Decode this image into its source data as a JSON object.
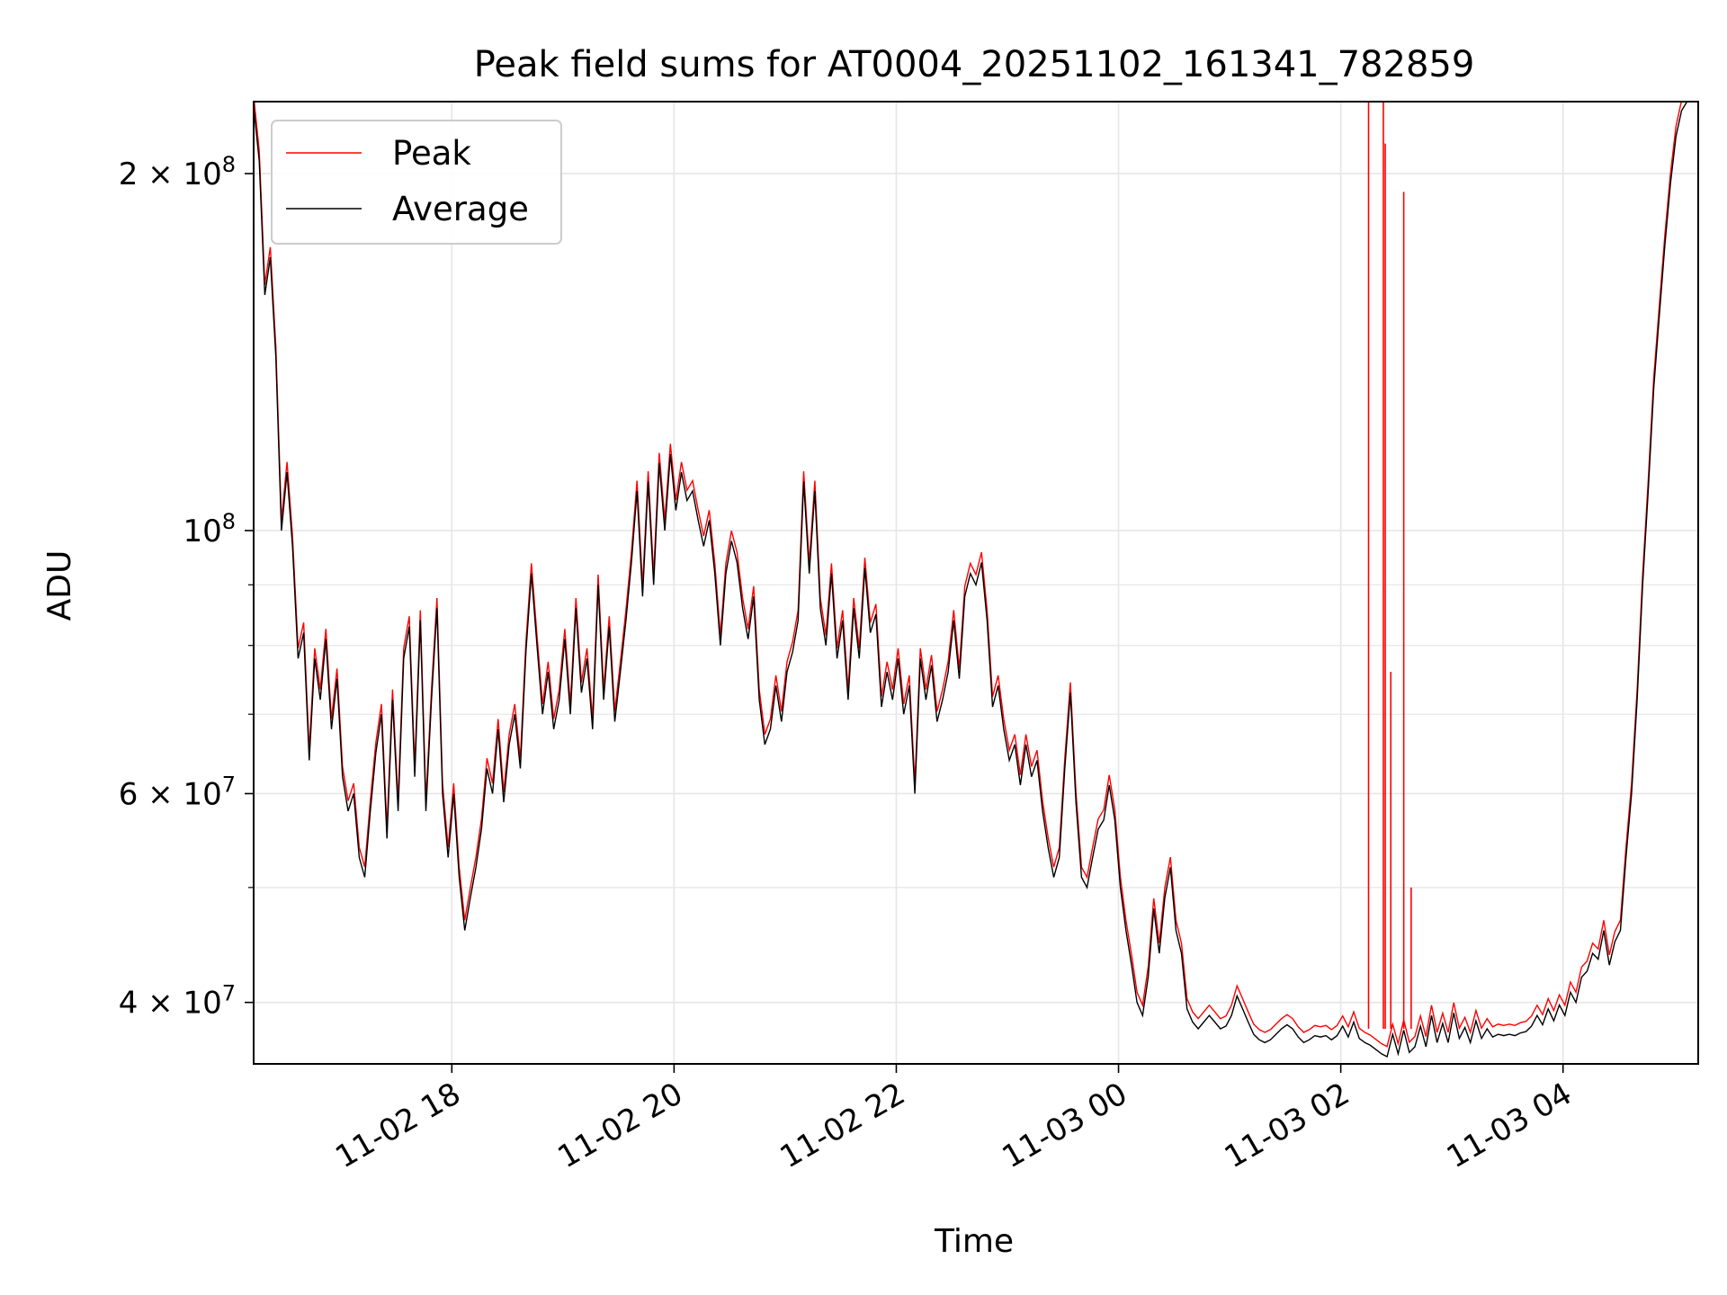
{
  "chart_data": {
    "type": "line",
    "title": "Peak field sums for AT0004_20251102_161341_782859",
    "xlabel": "Time",
    "ylabel": "ADU",
    "y_scale": "log",
    "ylim": [
      35500000,
      230000000
    ],
    "xlim": [
      "2025-11-02 16:13",
      "2025-11-03 05:13"
    ],
    "grid": true,
    "legend_position": "top-left",
    "x_tick_labels": [
      "11-02 18",
      "11-02 20",
      "11-02 22",
      "11-03 00",
      "11-03 02",
      "11-03 04"
    ],
    "x_ticks": [
      "2025-11-02 18:00",
      "2025-11-02 20:00",
      "2025-11-02 22:00",
      "2025-11-03 00:00",
      "2025-11-03 02:00",
      "2025-11-03 04:00"
    ],
    "y_tick_labels": [
      {
        "value": 40000000,
        "mantissa": "4",
        "exponent": "7"
      },
      {
        "value": 60000000,
        "mantissa": "6",
        "exponent": "7"
      },
      {
        "value": 100000000,
        "mantissa": "",
        "exponent": "8"
      },
      {
        "value": 200000000,
        "mantissa": "2",
        "exponent": "8"
      }
    ],
    "y_minor_ticks": [
      50000000,
      70000000,
      80000000,
      90000000
    ],
    "average_points": [
      [
        "2025-11-02 16:13",
        228000000
      ],
      [
        "2025-11-02 16:16",
        205000000
      ],
      [
        "2025-11-02 16:19",
        158000000
      ],
      [
        "2025-11-02 16:22",
        170000000
      ],
      [
        "2025-11-02 16:25",
        140000000
      ],
      [
        "2025-11-02 16:28",
        100000000
      ],
      [
        "2025-11-02 16:31",
        112000000
      ],
      [
        "2025-11-02 16:34",
        97000000
      ],
      [
        "2025-11-02 16:37",
        78000000
      ],
      [
        "2025-11-02 16:40",
        82000000
      ],
      [
        "2025-11-02 16:43",
        64000000
      ],
      [
        "2025-11-02 16:46",
        78000000
      ],
      [
        "2025-11-02 16:49",
        72000000
      ],
      [
        "2025-11-02 16:52",
        81000000
      ],
      [
        "2025-11-02 16:55",
        68000000
      ],
      [
        "2025-11-02 16:58",
        75000000
      ],
      [
        "2025-11-02 17:01",
        62000000
      ],
      [
        "2025-11-02 17:04",
        58000000
      ],
      [
        "2025-11-02 17:07",
        60000000
      ],
      [
        "2025-11-02 17:10",
        53000000
      ],
      [
        "2025-11-02 17:13",
        51000000
      ],
      [
        "2025-11-02 17:16",
        58000000
      ],
      [
        "2025-11-02 17:19",
        65000000
      ],
      [
        "2025-11-02 17:22",
        70000000
      ],
      [
        "2025-11-02 17:25",
        55000000
      ],
      [
        "2025-11-02 17:28",
        72000000
      ],
      [
        "2025-11-02 17:31",
        58000000
      ],
      [
        "2025-11-02 17:34",
        78000000
      ],
      [
        "2025-11-02 17:37",
        83000000
      ],
      [
        "2025-11-02 17:40",
        62000000
      ],
      [
        "2025-11-02 17:43",
        84000000
      ],
      [
        "2025-11-02 17:46",
        58000000
      ],
      [
        "2025-11-02 17:49",
        72000000
      ],
      [
        "2025-11-02 17:52",
        86000000
      ],
      [
        "2025-11-02 17:55",
        60000000
      ],
      [
        "2025-11-02 17:58",
        53000000
      ],
      [
        "2025-11-02 18:01",
        60000000
      ],
      [
        "2025-11-02 18:04",
        51000000
      ],
      [
        "2025-11-02 18:07",
        46000000
      ],
      [
        "2025-11-02 18:10",
        49000000
      ],
      [
        "2025-11-02 18:13",
        52000000
      ],
      [
        "2025-11-02 18:16",
        56000000
      ],
      [
        "2025-11-02 18:19",
        63000000
      ],
      [
        "2025-11-02 18:22",
        60000000
      ],
      [
        "2025-11-02 18:25",
        68000000
      ],
      [
        "2025-11-02 18:28",
        59000000
      ],
      [
        "2025-11-02 18:31",
        66000000
      ],
      [
        "2025-11-02 18:34",
        70000000
      ],
      [
        "2025-11-02 18:37",
        63000000
      ],
      [
        "2025-11-02 18:40",
        79000000
      ],
      [
        "2025-11-02 18:43",
        92000000
      ],
      [
        "2025-11-02 18:46",
        80000000
      ],
      [
        "2025-11-02 18:49",
        70000000
      ],
      [
        "2025-11-02 18:52",
        76000000
      ],
      [
        "2025-11-02 18:55",
        68000000
      ],
      [
        "2025-11-02 18:58",
        72000000
      ],
      [
        "2025-11-02 19:01",
        81000000
      ],
      [
        "2025-11-02 19:04",
        70000000
      ],
      [
        "2025-11-02 19:07",
        86000000
      ],
      [
        "2025-11-02 19:10",
        73000000
      ],
      [
        "2025-11-02 19:13",
        78000000
      ],
      [
        "2025-11-02 19:16",
        68000000
      ],
      [
        "2025-11-02 19:19",
        90000000
      ],
      [
        "2025-11-02 19:22",
        72000000
      ],
      [
        "2025-11-02 19:25",
        83000000
      ],
      [
        "2025-11-02 19:28",
        69000000
      ],
      [
        "2025-11-02 19:31",
        76000000
      ],
      [
        "2025-11-02 19:34",
        84000000
      ],
      [
        "2025-11-02 19:37",
        94000000
      ],
      [
        "2025-11-02 19:40",
        108000000
      ],
      [
        "2025-11-02 19:43",
        88000000
      ],
      [
        "2025-11-02 19:46",
        110000000
      ],
      [
        "2025-11-02 19:49",
        90000000
      ],
      [
        "2025-11-02 19:52",
        114000000
      ],
      [
        "2025-11-02 19:55",
        100000000
      ],
      [
        "2025-11-02 19:58",
        116000000
      ],
      [
        "2025-11-02 20:01",
        104000000
      ],
      [
        "2025-11-02 20:04",
        112000000
      ],
      [
        "2025-11-02 20:07",
        106000000
      ],
      [
        "2025-11-02 20:10",
        108000000
      ],
      [
        "2025-11-02 20:13",
        102000000
      ],
      [
        "2025-11-02 20:16",
        97000000
      ],
      [
        "2025-11-02 20:19",
        102000000
      ],
      [
        "2025-11-02 20:22",
        92000000
      ],
      [
        "2025-11-02 20:25",
        80000000
      ],
      [
        "2025-11-02 20:28",
        92000000
      ],
      [
        "2025-11-02 20:31",
        98000000
      ],
      [
        "2025-11-02 20:34",
        94000000
      ],
      [
        "2025-11-02 20:37",
        86000000
      ],
      [
        "2025-11-02 20:40",
        81000000
      ],
      [
        "2025-11-02 20:43",
        88000000
      ],
      [
        "2025-11-02 20:46",
        72000000
      ],
      [
        "2025-11-02 20:49",
        66000000
      ],
      [
        "2025-11-02 20:52",
        68000000
      ],
      [
        "2025-11-02 20:55",
        74000000
      ],
      [
        "2025-11-02 20:58",
        69000000
      ],
      [
        "2025-11-02 21:01",
        76000000
      ],
      [
        "2025-11-02 21:04",
        79000000
      ],
      [
        "2025-11-02 21:07",
        84000000
      ],
      [
        "2025-11-02 21:10",
        110000000
      ],
      [
        "2025-11-02 21:13",
        92000000
      ],
      [
        "2025-11-02 21:16",
        108000000
      ],
      [
        "2025-11-02 21:19",
        86000000
      ],
      [
        "2025-11-02 21:22",
        80000000
      ],
      [
        "2025-11-02 21:25",
        92000000
      ],
      [
        "2025-11-02 21:28",
        78000000
      ],
      [
        "2025-11-02 21:31",
        84000000
      ],
      [
        "2025-11-02 21:34",
        72000000
      ],
      [
        "2025-11-02 21:37",
        86000000
      ],
      [
        "2025-11-02 21:40",
        78000000
      ],
      [
        "2025-11-02 21:43",
        93000000
      ],
      [
        "2025-11-02 21:46",
        82000000
      ],
      [
        "2025-11-02 21:49",
        85000000
      ],
      [
        "2025-11-02 21:52",
        71000000
      ],
      [
        "2025-11-02 21:55",
        76000000
      ],
      [
        "2025-11-02 21:58",
        72000000
      ],
      [
        "2025-11-02 22:01",
        78000000
      ],
      [
        "2025-11-02 22:04",
        70000000
      ],
      [
        "2025-11-02 22:07",
        74000000
      ],
      [
        "2025-11-02 22:10",
        60000000
      ],
      [
        "2025-11-02 22:13",
        78000000
      ],
      [
        "2025-11-02 22:16",
        72000000
      ],
      [
        "2025-11-02 22:19",
        77000000
      ],
      [
        "2025-11-02 22:22",
        69000000
      ],
      [
        "2025-11-02 22:25",
        72000000
      ],
      [
        "2025-11-02 22:28",
        76000000
      ],
      [
        "2025-11-02 22:31",
        84000000
      ],
      [
        "2025-11-02 22:34",
        75000000
      ],
      [
        "2025-11-02 22:37",
        88000000
      ],
      [
        "2025-11-02 22:40",
        92000000
      ],
      [
        "2025-11-02 22:43",
        90000000
      ],
      [
        "2025-11-02 22:46",
        94000000
      ],
      [
        "2025-11-02 22:49",
        84000000
      ],
      [
        "2025-11-02 22:52",
        71000000
      ],
      [
        "2025-11-02 22:55",
        74000000
      ],
      [
        "2025-11-02 22:58",
        68000000
      ],
      [
        "2025-11-02 23:01",
        64000000
      ],
      [
        "2025-11-02 23:04",
        66000000
      ],
      [
        "2025-11-02 23:07",
        61000000
      ],
      [
        "2025-11-02 23:10",
        66000000
      ],
      [
        "2025-11-02 23:13",
        62000000
      ],
      [
        "2025-11-02 23:16",
        64000000
      ],
      [
        "2025-11-02 23:19",
        58000000
      ],
      [
        "2025-11-02 23:22",
        54000000
      ],
      [
        "2025-11-02 23:25",
        51000000
      ],
      [
        "2025-11-02 23:28",
        53000000
      ],
      [
        "2025-11-02 23:31",
        63000000
      ],
      [
        "2025-11-02 23:34",
        73000000
      ],
      [
        "2025-11-02 23:37",
        59000000
      ],
      [
        "2025-11-02 23:40",
        51000000
      ],
      [
        "2025-11-02 23:43",
        50000000
      ],
      [
        "2025-11-02 23:46",
        53000000
      ],
      [
        "2025-11-02 23:49",
        56000000
      ],
      [
        "2025-11-02 23:52",
        57000000
      ],
      [
        "2025-11-02 23:55",
        61000000
      ],
      [
        "2025-11-02 23:58",
        57000000
      ],
      [
        "2025-11-03 00:01",
        50000000
      ],
      [
        "2025-11-03 00:04",
        46000000
      ],
      [
        "2025-11-03 00:07",
        43000000
      ],
      [
        "2025-11-03 00:10",
        40000000
      ],
      [
        "2025-11-03 00:13",
        39000000
      ],
      [
        "2025-11-03 00:16",
        42000000
      ],
      [
        "2025-11-03 00:19",
        48000000
      ],
      [
        "2025-11-03 00:22",
        44000000
      ],
      [
        "2025-11-03 00:25",
        49000000
      ],
      [
        "2025-11-03 00:28",
        52000000
      ],
      [
        "2025-11-03 00:31",
        46000000
      ],
      [
        "2025-11-03 00:34",
        44000000
      ],
      [
        "2025-11-03 00:37",
        39500000
      ],
      [
        "2025-11-03 00:40",
        38500000
      ],
      [
        "2025-11-03 00:43",
        38000000
      ],
      [
        "2025-11-03 00:46",
        38500000
      ],
      [
        "2025-11-03 00:49",
        39000000
      ],
      [
        "2025-11-03 00:52",
        38500000
      ],
      [
        "2025-11-03 00:55",
        38000000
      ],
      [
        "2025-11-03 00:58",
        38200000
      ],
      [
        "2025-11-03 01:01",
        39000000
      ],
      [
        "2025-11-03 01:04",
        40500000
      ],
      [
        "2025-11-03 01:07",
        39500000
      ],
      [
        "2025-11-03 01:10",
        38500000
      ],
      [
        "2025-11-03 01:13",
        37600000
      ],
      [
        "2025-11-03 01:16",
        37200000
      ],
      [
        "2025-11-03 01:19",
        37000000
      ],
      [
        "2025-11-03 01:22",
        37200000
      ],
      [
        "2025-11-03 01:25",
        37600000
      ],
      [
        "2025-11-03 01:28",
        38000000
      ],
      [
        "2025-11-03 01:31",
        38300000
      ],
      [
        "2025-11-03 01:34",
        38000000
      ],
      [
        "2025-11-03 01:37",
        37400000
      ],
      [
        "2025-11-03 01:40",
        37000000
      ],
      [
        "2025-11-03 01:43",
        37200000
      ],
      [
        "2025-11-03 01:46",
        37500000
      ],
      [
        "2025-11-03 01:49",
        37400000
      ],
      [
        "2025-11-03 01:52",
        37500000
      ],
      [
        "2025-11-03 01:55",
        37200000
      ],
      [
        "2025-11-03 01:58",
        37500000
      ],
      [
        "2025-11-03 02:01",
        38200000
      ],
      [
        "2025-11-03 02:04",
        37400000
      ],
      [
        "2025-11-03 02:07",
        38500000
      ],
      [
        "2025-11-03 02:10",
        37300000
      ],
      [
        "2025-11-03 02:13",
        37000000
      ],
      [
        "2025-11-03 02:16",
        36800000
      ],
      [
        "2025-11-03 02:19",
        36500000
      ],
      [
        "2025-11-03 02:22",
        36200000
      ],
      [
        "2025-11-03 02:25",
        36000000
      ],
      [
        "2025-11-03 02:28",
        37600000
      ],
      [
        "2025-11-03 02:31",
        36200000
      ],
      [
        "2025-11-03 02:34",
        37900000
      ],
      [
        "2025-11-03 02:37",
        36300000
      ],
      [
        "2025-11-03 02:40",
        36700000
      ],
      [
        "2025-11-03 02:43",
        38200000
      ],
      [
        "2025-11-03 02:46",
        36700000
      ],
      [
        "2025-11-03 02:49",
        39000000
      ],
      [
        "2025-11-03 02:52",
        37000000
      ],
      [
        "2025-11-03 02:55",
        38400000
      ],
      [
        "2025-11-03 02:58",
        37000000
      ],
      [
        "2025-11-03 03:01",
        39200000
      ],
      [
        "2025-11-03 03:04",
        37300000
      ],
      [
        "2025-11-03 03:07",
        38100000
      ],
      [
        "2025-11-03 03:10",
        37000000
      ],
      [
        "2025-11-03 03:13",
        38600000
      ],
      [
        "2025-11-03 03:16",
        37300000
      ],
      [
        "2025-11-03 03:19",
        38000000
      ],
      [
        "2025-11-03 03:22",
        37400000
      ],
      [
        "2025-11-03 03:25",
        37600000
      ],
      [
        "2025-11-03 03:28",
        37500000
      ],
      [
        "2025-11-03 03:31",
        37600000
      ],
      [
        "2025-11-03 03:34",
        37500000
      ],
      [
        "2025-11-03 03:37",
        37700000
      ],
      [
        "2025-11-03 03:40",
        37800000
      ],
      [
        "2025-11-03 03:43",
        38200000
      ],
      [
        "2025-11-03 03:46",
        39000000
      ],
      [
        "2025-11-03 03:49",
        38300000
      ],
      [
        "2025-11-03 03:52",
        39500000
      ],
      [
        "2025-11-03 03:55",
        38600000
      ],
      [
        "2025-11-03 03:58",
        39800000
      ],
      [
        "2025-11-03 04:01",
        39000000
      ],
      [
        "2025-11-03 04:04",
        40800000
      ],
      [
        "2025-11-03 04:07",
        40000000
      ],
      [
        "2025-11-03 04:10",
        42000000
      ],
      [
        "2025-11-03 04:13",
        42500000
      ],
      [
        "2025-11-03 04:16",
        44000000
      ],
      [
        "2025-11-03 04:19",
        43500000
      ],
      [
        "2025-11-03 04:22",
        46000000
      ],
      [
        "2025-11-03 04:25",
        43000000
      ],
      [
        "2025-11-03 04:28",
        45000000
      ],
      [
        "2025-11-03 04:31",
        46000000
      ],
      [
        "2025-11-03 04:34",
        53000000
      ],
      [
        "2025-11-03 04:37",
        60000000
      ],
      [
        "2025-11-03 04:40",
        72000000
      ],
      [
        "2025-11-03 04:43",
        90000000
      ],
      [
        "2025-11-03 04:46",
        108000000
      ],
      [
        "2025-11-03 04:49",
        132000000
      ],
      [
        "2025-11-03 04:52",
        152000000
      ],
      [
        "2025-11-03 04:55",
        174000000
      ],
      [
        "2025-11-03 04:58",
        196000000
      ],
      [
        "2025-11-03 05:01",
        215000000
      ],
      [
        "2025-11-03 05:04",
        226000000
      ],
      [
        "2025-11-03 05:07",
        230000000
      ]
    ],
    "peak_spikes": [
      [
        "2025-11-03 02:15",
        230000000
      ],
      [
        "2025-11-03 02:23",
        230000000
      ],
      [
        "2025-11-03 02:24",
        212000000
      ],
      [
        "2025-11-03 02:27",
        76000000
      ],
      [
        "2025-11-03 02:34",
        193000000
      ],
      [
        "2025-11-03 02:38",
        50000000
      ]
    ],
    "series": [
      {
        "name": "Peak",
        "color": "#ff0000"
      },
      {
        "name": "Average",
        "color": "#000000"
      }
    ]
  }
}
